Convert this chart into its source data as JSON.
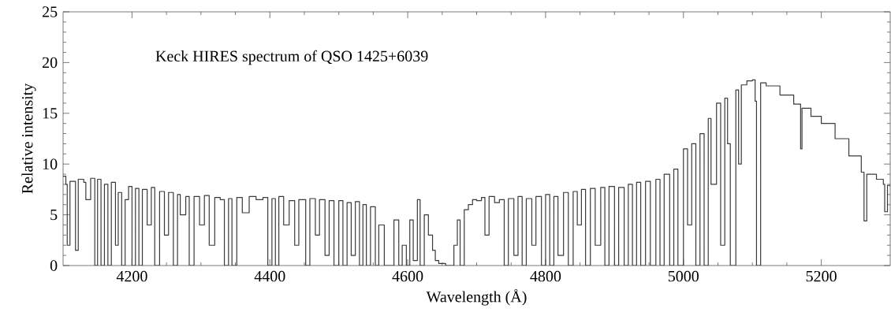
{
  "chart_data": {
    "type": "step",
    "xlabel": "Wavelength (Å)",
    "ylabel": "Relative intensity",
    "annotations": [
      "Keck HIRES spectrum of QSO 1425+6039"
    ],
    "xlim": [
      4100,
      5300
    ],
    "ylim": [
      0,
      25
    ],
    "xticks": [
      4200,
      4400,
      4600,
      4800,
      5000,
      5200
    ],
    "yticks": [
      0,
      5,
      10,
      15,
      20,
      25
    ],
    "marker": "none",
    "line_style": "solid",
    "series": [
      {
        "color": "#3a3a3a",
        "x": [
          4100,
          4104,
          4106,
          4110,
          4118,
          4122,
          4130,
          4133,
          4140,
          4146,
          4150,
          4155,
          4160,
          4165,
          4170,
          4176,
          4180,
          4185,
          4190,
          4195,
          4200,
          4205,
          4210,
          4215,
          4222,
          4228,
          4233,
          4240,
          4247,
          4253,
          4260,
          4266,
          4270,
          4278,
          4283,
          4290,
          4298,
          4305,
          4312,
          4320,
          4328,
          4334,
          4340,
          4345,
          4352,
          4360,
          4370,
          4380,
          4390,
          4397,
          4403,
          4408,
          4413,
          4420,
          4428,
          4436,
          4442,
          4452,
          4458,
          4466,
          4472,
          4480,
          4486,
          4493,
          4500,
          4506,
          4512,
          4518,
          4524,
          4530,
          4535,
          4540,
          4546,
          4553,
          4558,
          4566,
          4575,
          4580,
          4587,
          4592,
          4598,
          4603,
          4608,
          4614,
          4618,
          4624,
          4630,
          4636,
          4640,
          4645,
          4655,
          4662,
          4667,
          4672,
          4676,
          4682,
          4688,
          4694,
          4700,
          4707,
          4712,
          4718,
          4726,
          4733,
          4740,
          4746,
          4754,
          4760,
          4766,
          4772,
          4780,
          4786,
          4794,
          4800,
          4806,
          4812,
          4818,
          4826,
          4833,
          4840,
          4846,
          4852,
          4858,
          4865,
          4872,
          4880,
          4886,
          4892,
          4900,
          4906,
          4914,
          4920,
          4926,
          4932,
          4938,
          4945,
          4952,
          4960,
          4966,
          4972,
          4980,
          4986,
          4992,
          5000,
          5006,
          5012,
          5018,
          5024,
          5030,
          5036,
          5040,
          5048,
          5054,
          5060,
          5064,
          5068,
          5072,
          5076,
          5080,
          5084,
          5092,
          5100,
          5104,
          5106,
          5110,
          5112,
          5120,
          5140,
          5160,
          5170,
          5172,
          5185,
          5200,
          5220,
          5240,
          5258,
          5262,
          5266,
          5280,
          5290,
          5292,
          5296,
          5300
        ],
        "values": [
          8.8,
          8.0,
          2.0,
          8.3,
          1.5,
          8.5,
          8.2,
          6.5,
          8.6,
          0,
          8.5,
          0,
          8.0,
          0,
          8.2,
          2,
          7.2,
          0,
          6.5,
          7.8,
          0,
          7.6,
          0,
          7.5,
          4,
          7.7,
          0,
          7.3,
          3,
          7.2,
          0,
          7.0,
          5,
          6.8,
          0,
          6.8,
          4,
          6.9,
          2,
          6.7,
          6.5,
          0,
          6.6,
          0,
          6.7,
          5.2,
          6.8,
          6.5,
          6.7,
          0,
          6.6,
          0,
          6.8,
          4,
          6.4,
          2,
          6.5,
          0,
          6.6,
          3,
          6.5,
          1,
          6.4,
          0,
          6.4,
          0,
          6.2,
          1,
          6.3,
          0,
          6.0,
          0,
          5.8,
          0,
          4,
          0,
          0,
          4.5,
          0,
          2,
          0,
          4.5,
          0.5,
          6.5,
          0,
          5,
          3,
          1.5,
          0.5,
          0.2,
          0,
          0,
          2,
          4.5,
          0,
          5.5,
          6,
          6.5,
          6.4,
          6.7,
          3,
          6.8,
          6.2,
          6.5,
          0,
          6.6,
          1,
          6.8,
          0,
          6.6,
          2,
          6.8,
          0,
          7.0,
          0,
          6.8,
          1,
          7.2,
          0,
          7.3,
          4,
          7.5,
          0,
          7.6,
          2,
          7.7,
          0,
          7.8,
          0,
          7.7,
          0,
          8.0,
          0,
          8.2,
          0,
          8.3,
          0,
          8.5,
          0,
          9.0,
          0,
          9.5,
          0,
          11.5,
          4,
          12.0,
          0,
          13.0,
          0,
          14.5,
          8,
          16.0,
          2,
          16.5,
          12,
          0,
          0,
          17.3,
          10,
          17.8,
          18.2,
          18.3,
          16.2,
          0,
          0,
          18.0,
          17.7,
          16.8,
          15.9,
          11.5,
          15.5,
          14.7,
          14.0,
          12.5,
          10.8,
          9.2,
          4.4,
          9.0,
          8.5,
          8.0,
          5.3,
          7.9,
          7.8
        ]
      }
    ]
  }
}
